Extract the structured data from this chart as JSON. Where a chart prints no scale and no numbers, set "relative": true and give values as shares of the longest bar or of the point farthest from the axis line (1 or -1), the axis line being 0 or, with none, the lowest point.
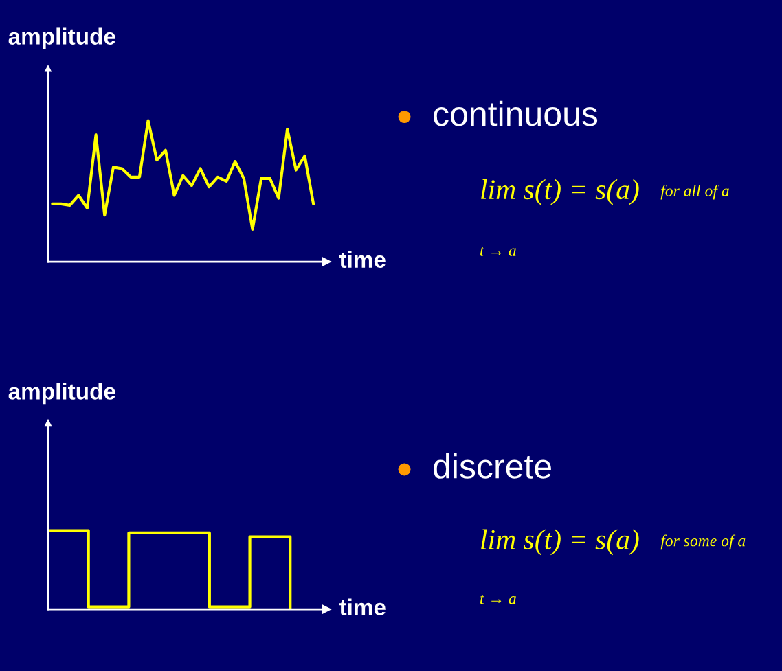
{
  "chart_data": [
    {
      "type": "line",
      "relative": true,
      "xlabel": "time",
      "ylabel": "amplitude",
      "tick_labels": false,
      "color": "#ffff00",
      "categories": [
        null,
        null,
        null,
        null,
        null,
        null,
        null,
        null,
        null,
        null,
        null,
        null,
        null,
        null,
        null,
        null,
        null,
        null,
        null,
        null,
        null,
        null,
        null,
        null,
        null,
        null,
        null,
        null,
        null,
        null,
        null
      ],
      "values": [
        0.41,
        0.41,
        0.4,
        0.47,
        0.38,
        0.9,
        0.33,
        0.67,
        0.66,
        0.6,
        0.6,
        1.0,
        0.72,
        0.79,
        0.47,
        0.61,
        0.54,
        0.66,
        0.53,
        0.6,
        0.57,
        0.71,
        0.59,
        0.23,
        0.59,
        0.59,
        0.45,
        0.94,
        0.65,
        0.75,
        0.41
      ],
      "annotations": [
        "continuous",
        "lim s(t) = s(a)",
        "for all of a",
        "t → a"
      ]
    },
    {
      "type": "step",
      "relative": true,
      "xlabel": "time",
      "ylabel": "amplitude",
      "tick_labels": false,
      "color": "#ffff00",
      "categories": [
        null,
        null,
        null,
        null,
        null,
        null,
        null
      ],
      "values": [
        1.0,
        0.03,
        0.97,
        0.97,
        0.03,
        0.92,
        0
      ],
      "annotations": [
        "discrete",
        "lim s(t) = s(a)",
        "for some of a",
        "t → a"
      ]
    }
  ]
}
